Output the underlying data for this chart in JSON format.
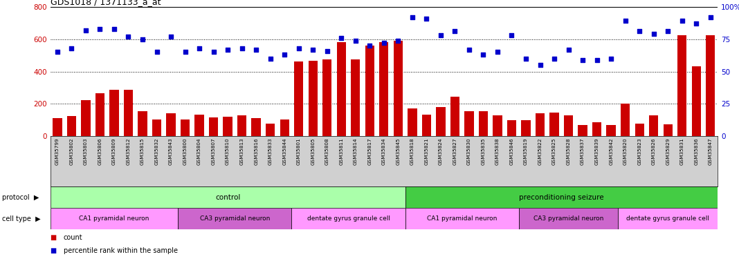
{
  "title": "GDS1018 / 1371133_a_at",
  "samples": [
    "GSM35799",
    "GSM35802",
    "GSM35803",
    "GSM35806",
    "GSM35809",
    "GSM35812",
    "GSM35815",
    "GSM35832",
    "GSM35843",
    "GSM35800",
    "GSM35804",
    "GSM35807",
    "GSM35810",
    "GSM35813",
    "GSM35816",
    "GSM35833",
    "GSM35844",
    "GSM35801",
    "GSM35805",
    "GSM35808",
    "GSM35811",
    "GSM35814",
    "GSM35817",
    "GSM35834",
    "GSM35845",
    "GSM35818",
    "GSM35821",
    "GSM35824",
    "GSM35827",
    "GSM35830",
    "GSM35835",
    "GSM35838",
    "GSM35846",
    "GSM35819",
    "GSM35822",
    "GSM35825",
    "GSM35828",
    "GSM35837",
    "GSM35839",
    "GSM35842",
    "GSM35820",
    "GSM35823",
    "GSM35826",
    "GSM35829",
    "GSM35831",
    "GSM35836",
    "GSM35847"
  ],
  "counts": [
    110,
    125,
    225,
    265,
    285,
    285,
    155,
    105,
    140,
    105,
    135,
    115,
    120,
    130,
    110,
    80,
    105,
    460,
    465,
    475,
    580,
    475,
    560,
    580,
    590,
    170,
    135,
    180,
    245,
    155,
    155,
    130,
    100,
    100,
    140,
    145,
    130,
    70,
    85,
    70,
    200,
    80,
    130,
    75,
    625,
    430,
    625
  ],
  "percentiles": [
    65,
    68,
    82,
    83,
    83,
    77,
    75,
    65,
    77,
    65,
    68,
    65,
    67,
    68,
    67,
    60,
    63,
    68,
    67,
    66,
    76,
    74,
    70,
    72,
    74,
    92,
    91,
    78,
    81,
    67,
    63,
    65,
    78,
    60,
    55,
    60,
    67,
    59,
    59,
    60,
    89,
    81,
    79,
    81,
    89,
    87,
    92
  ],
  "bar_color": "#cc0000",
  "dot_color": "#0000cc",
  "ylim_left": [
    0,
    800
  ],
  "ylim_right": [
    0,
    100
  ],
  "yticks_left": [
    0,
    200,
    400,
    600,
    800
  ],
  "yticks_right": [
    0,
    25,
    50,
    75,
    100
  ],
  "ytick_right_labels": [
    "0",
    "25",
    "50",
    "75",
    "100%"
  ],
  "grid_dotted_at": [
    200,
    400,
    600
  ],
  "protocol_groups": [
    {
      "label": "control",
      "start": 0,
      "end": 24,
      "color": "#aaffaa"
    },
    {
      "label": "preconditioning seizure",
      "start": 25,
      "end": 46,
      "color": "#44cc44"
    }
  ],
  "cell_type_groups": [
    {
      "label": "CA1 pyramidal neuron",
      "start": 0,
      "end": 8,
      "color": "#ff99ff"
    },
    {
      "label": "CA3 pyramidal neuron",
      "start": 9,
      "end": 16,
      "color": "#cc66cc"
    },
    {
      "label": "dentate gyrus granule cell",
      "start": 17,
      "end": 24,
      "color": "#ff99ff"
    },
    {
      "label": "CA1 pyramidal neuron",
      "start": 25,
      "end": 32,
      "color": "#ff99ff"
    },
    {
      "label": "CA3 pyramidal neuron",
      "start": 33,
      "end": 39,
      "color": "#cc66cc"
    },
    {
      "label": "dentate gyrus granule cell",
      "start": 40,
      "end": 46,
      "color": "#ff99ff"
    }
  ],
  "xtick_bg_color": "#d0d0d0",
  "background_color": "#ffffff",
  "bar_width": 0.65,
  "legend_count_color": "#cc0000",
  "legend_pct_color": "#0000cc"
}
